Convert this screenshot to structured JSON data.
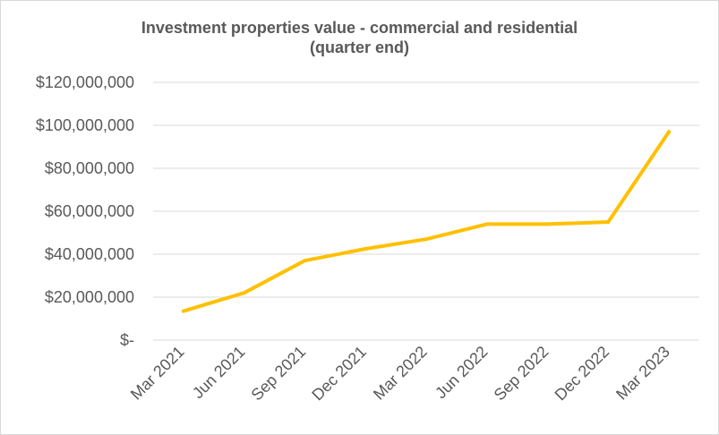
{
  "chart_data": {
    "type": "line",
    "title_line1": "Investment properties value - commercial and residential",
    "title_line2": "(quarter end)",
    "xlabel": "",
    "ylabel": "",
    "categories": [
      "Mar 2021",
      "Jun 2021",
      "Sep 2021",
      "Dec 2021",
      "Mar 2022",
      "Jun 2022",
      "Sep 2022",
      "Dec 2022",
      "Mar 2023"
    ],
    "series": [
      {
        "values": [
          13500000,
          22000000,
          37000000,
          42500000,
          47000000,
          54000000,
          54000000,
          55000000,
          97000000
        ]
      }
    ],
    "ylim": [
      0,
      120000000
    ],
    "yticks": [
      0,
      20000000,
      40000000,
      60000000,
      80000000,
      100000000,
      120000000
    ],
    "ytick_labels": [
      "$-",
      "$20,000,000",
      "$40,000,000",
      "$60,000,000",
      "$80,000,000",
      "$100,000,000",
      "$120,000,000"
    ],
    "grid": true,
    "legend": "none",
    "colors": {
      "line": "#FFC000",
      "grid": "#d9d9d9",
      "text": "#595959"
    }
  }
}
